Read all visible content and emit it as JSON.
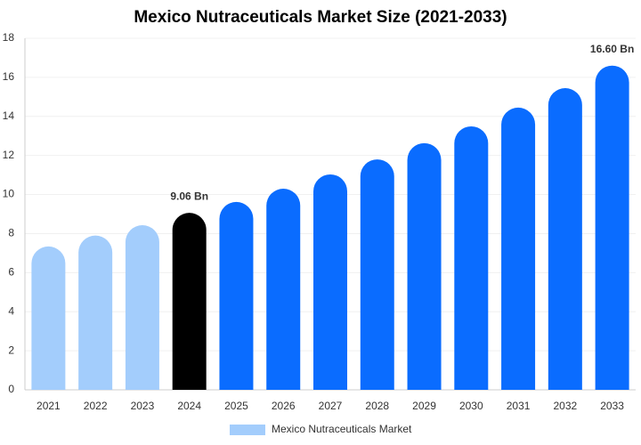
{
  "chart_data": {
    "type": "bar",
    "title": "Mexico Nutraceuticals Market Size (2021-2033)",
    "categories": [
      "2021",
      "2022",
      "2023",
      "2024",
      "2025",
      "2026",
      "2027",
      "2028",
      "2029",
      "2030",
      "2031",
      "2032",
      "2033"
    ],
    "series": [
      {
        "name": "Mexico Nutraceuticals Market",
        "color": "#a3cdfc",
        "colors": [
          "#a3cdfc",
          "#a3cdfc",
          "#a3cdfc",
          "#000000",
          "#0a6cff",
          "#0a6cff",
          "#0a6cff",
          "#0a6cff",
          "#0a6cff",
          "#0a6cff",
          "#0a6cff",
          "#0a6cff",
          "#0a6cff"
        ],
        "values": [
          7.34,
          7.9,
          8.43,
          9.06,
          9.62,
          10.3,
          11.03,
          11.8,
          12.63,
          13.49,
          14.45,
          15.45,
          16.6
        ],
        "value_labels": [
          null,
          null,
          null,
          "9.06 Bn",
          null,
          null,
          null,
          null,
          null,
          null,
          null,
          null,
          "16.60 Bn"
        ]
      }
    ],
    "ylim": [
      0,
      18
    ],
    "yticks": [
      0,
      2,
      4,
      6,
      8,
      10,
      12,
      14,
      16,
      18
    ],
    "grid": true
  }
}
